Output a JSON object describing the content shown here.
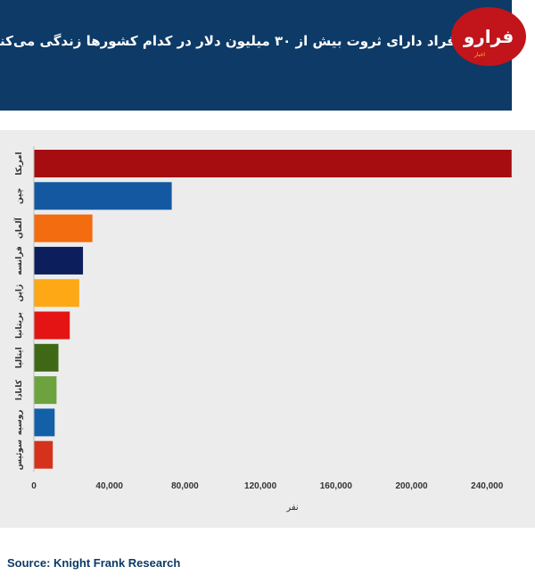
{
  "header": {
    "title": "افراد دارای ثروت بیش از ۳۰ میلیون دلار در کدام کشورها زندگی می‌کنند؟",
    "logo_text": "فرارو",
    "logo_tag": "اخبار"
  },
  "source": "Source: Knight Frank Research",
  "chart_data": {
    "type": "bar",
    "orientation": "horizontal",
    "title": "افراد دارای ثروت بیش از ۳۰ میلیون دلار در کدام کشورها زندگی می‌کنند؟",
    "xlabel": "نفر",
    "ylabel": "",
    "xlim": [
      0,
      255000
    ],
    "xticks": [
      0,
      40000,
      80000,
      120000,
      160000,
      200000,
      240000
    ],
    "xtick_labels": [
      "0",
      "40,000",
      "80,000",
      "120,000",
      "160,000",
      "200,000",
      "240,000"
    ],
    "grid": false,
    "categories": [
      "امریکا",
      "چین",
      "آلمان",
      "فرانسه",
      "ژاپن",
      "بریتانیا",
      "ایتالیا",
      "کانادا",
      "روسیه",
      "سوئیس"
    ],
    "values": [
      253000,
      73000,
      31000,
      26000,
      24000,
      19000,
      13000,
      12000,
      11000,
      10000
    ],
    "colors": [
      "#a50d10",
      "#1458a2",
      "#f36c0f",
      "#0c1f5c",
      "#fda814",
      "#e51414",
      "#3e6816",
      "#6ca33e",
      "#135fa8",
      "#d6311a"
    ]
  }
}
